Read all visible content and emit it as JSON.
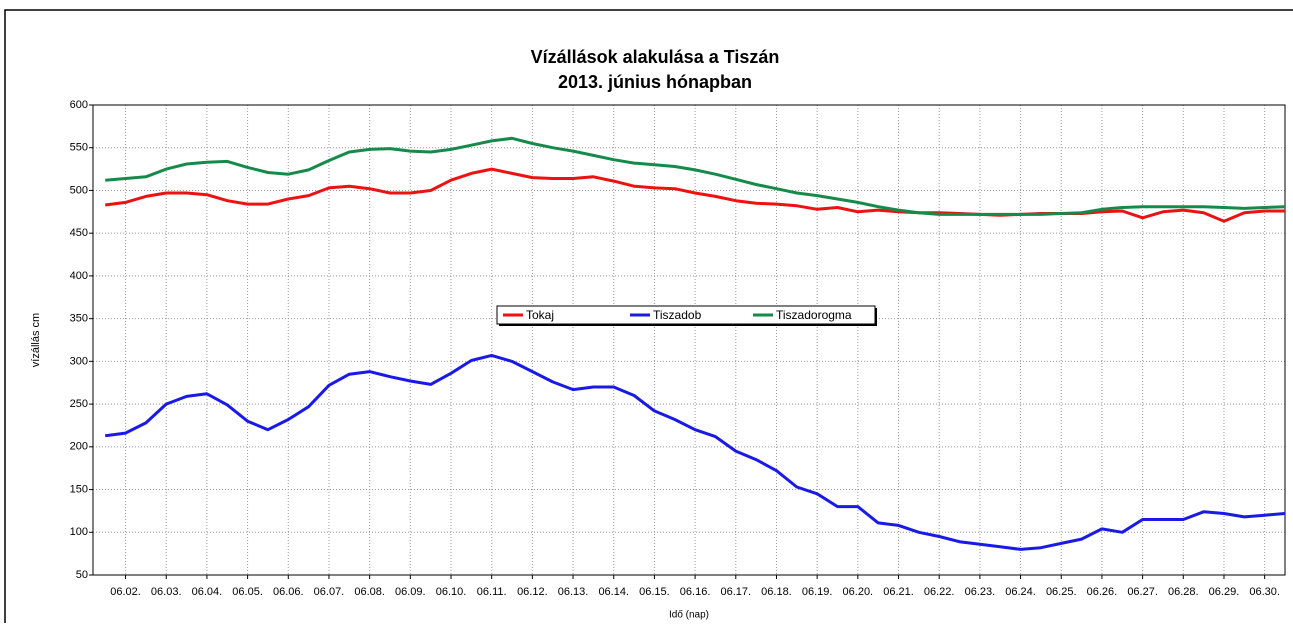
{
  "chart_data": {
    "type": "line",
    "title": "Vízállások alakulása a Tiszán",
    "subtitle": "2013. június hónapban",
    "x_label": "Idő (nap)",
    "y_label": "vízállás cm",
    "x": [
      1.5,
      2,
      2.5,
      3,
      3.5,
      4,
      4.5,
      5,
      5.5,
      6,
      6.5,
      7,
      7.5,
      8,
      8.5,
      9,
      9.5,
      10,
      10.5,
      11,
      11.5,
      12,
      12.5,
      13,
      13.5,
      14,
      14.5,
      15,
      15.5,
      16,
      16.5,
      17,
      17.5,
      18,
      18.5,
      19,
      19.5,
      20,
      20.5,
      21,
      21.5,
      22,
      22.5,
      23,
      23.5,
      24,
      24.5,
      25,
      25.5,
      26,
      26.5,
      27,
      27.5,
      28,
      28.5,
      29,
      29.5,
      30,
      30.5
    ],
    "series": [
      {
        "name": "Tokaj",
        "color": "#ee1111",
        "values": [
          483,
          486,
          493,
          497,
          497,
          495,
          488,
          484,
          484,
          490,
          494,
          503,
          505,
          502,
          497,
          497,
          500,
          512,
          520,
          525,
          520,
          515,
          514,
          514,
          516,
          511,
          505,
          503,
          502,
          497,
          493,
          488,
          485,
          484,
          482,
          478,
          480,
          475,
          477,
          475,
          474,
          474,
          473,
          472,
          471,
          472,
          473,
          473,
          473,
          475,
          476,
          468,
          475,
          477,
          474,
          464,
          474,
          476,
          476
        ]
      },
      {
        "name": "Tiszadob",
        "color": "#1a1ae6",
        "values": [
          213,
          216,
          228,
          250,
          259,
          262,
          249,
          230,
          220,
          232,
          247,
          272,
          285,
          288,
          282,
          277,
          273,
          286,
          301,
          307,
          300,
          288,
          276,
          267,
          270,
          270,
          260,
          242,
          232,
          220,
          212,
          195,
          185,
          172,
          153,
          145,
          130,
          130,
          111,
          108,
          100,
          95,
          89,
          86,
          83,
          80,
          82,
          87,
          92,
          104,
          100,
          115,
          115,
          115,
          124,
          122,
          118,
          120,
          122
        ]
      },
      {
        "name": "Tiszadorogma",
        "color": "#168a4a",
        "values": [
          512,
          514,
          516,
          525,
          531,
          533,
          534,
          527,
          521,
          519,
          524,
          535,
          545,
          548,
          549,
          546,
          545,
          548,
          553,
          558,
          561,
          555,
          550,
          546,
          541,
          536,
          532,
          530,
          528,
          524,
          519,
          513,
          507,
          502,
          497,
          494,
          490,
          486,
          481,
          477,
          474,
          472,
          472,
          472,
          472,
          472,
          472,
          473,
          474,
          478,
          480,
          481,
          481,
          481,
          481,
          480,
          479,
          480,
          481
        ]
      }
    ],
    "xlim": [
      1.2,
      30.5
    ],
    "xticks": [
      {
        "value": 2,
        "label": "06.02."
      },
      {
        "value": 3,
        "label": "06.03."
      },
      {
        "value": 4,
        "label": "06.04."
      },
      {
        "value": 5,
        "label": "06.05."
      },
      {
        "value": 6,
        "label": "06.06."
      },
      {
        "value": 7,
        "label": "06.07."
      },
      {
        "value": 8,
        "label": "06.08."
      },
      {
        "value": 9,
        "label": "06.09."
      },
      {
        "value": 10,
        "label": "06.10."
      },
      {
        "value": 11,
        "label": "06.11."
      },
      {
        "value": 12,
        "label": "06.12."
      },
      {
        "value": 13,
        "label": "06.13."
      },
      {
        "value": 14,
        "label": "06.14."
      },
      {
        "value": 15,
        "label": "06.15."
      },
      {
        "value": 16,
        "label": "06.16."
      },
      {
        "value": 17,
        "label": "06.17."
      },
      {
        "value": 18,
        "label": "06.18."
      },
      {
        "value": 19,
        "label": "06.19."
      },
      {
        "value": 20,
        "label": "06.20."
      },
      {
        "value": 21,
        "label": "06.21."
      },
      {
        "value": 22,
        "label": "06.22."
      },
      {
        "value": 23,
        "label": "06.23."
      },
      {
        "value": 24,
        "label": "06.24."
      },
      {
        "value": 25,
        "label": "06.25."
      },
      {
        "value": 26,
        "label": "06.26."
      },
      {
        "value": 27,
        "label": "06.27."
      },
      {
        "value": 28,
        "label": "06.28."
      },
      {
        "value": 29,
        "label": "06.29."
      },
      {
        "value": 30,
        "label": "06.30."
      }
    ],
    "ylim": [
      50,
      600
    ],
    "yticks": [
      50,
      100,
      150,
      200,
      250,
      300,
      350,
      400,
      450,
      500,
      550,
      600
    ],
    "grid": true,
    "legend": "center"
  }
}
